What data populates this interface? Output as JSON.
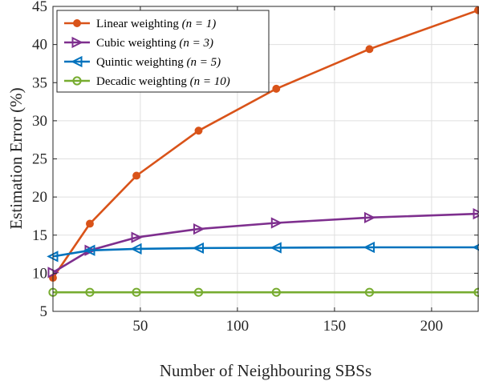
{
  "chart_data": {
    "type": "line",
    "xlabel": "Number of Neighbouring SBSs",
    "ylabel": "Estimation Error (%)",
    "xlim": [
      5,
      224
    ],
    "ylim": [
      5,
      45
    ],
    "xticks": [
      50,
      100,
      150,
      200
    ],
    "yticks": [
      5,
      10,
      15,
      20,
      25,
      30,
      35,
      40,
      45
    ],
    "x": [
      5,
      24,
      48,
      80,
      120,
      168,
      224
    ],
    "grid": true,
    "legend_position": "top-left",
    "series": [
      {
        "name": "Linear weighting",
        "param": "(n = 1)",
        "marker": "circle-filled",
        "color": "#D95319",
        "values": [
          9.4,
          16.5,
          22.8,
          28.7,
          34.2,
          39.4,
          44.5
        ]
      },
      {
        "name": "Cubic weighting",
        "param": "(n = 3)",
        "marker": "triangle-right",
        "color": "#7E2F8E",
        "values": [
          10.1,
          13.0,
          14.7,
          15.8,
          16.6,
          17.3,
          17.8
        ]
      },
      {
        "name": "Quintic weighting",
        "param": "(n = 5)",
        "marker": "triangle-left",
        "color": "#0072BD",
        "values": [
          12.2,
          13.0,
          13.2,
          13.3,
          13.35,
          13.4,
          13.4
        ]
      },
      {
        "name": "Decadic weighting",
        "param": "(n = 10)",
        "marker": "circle-open",
        "color": "#77AC30",
        "values": [
          7.5,
          7.5,
          7.5,
          7.5,
          7.5,
          7.5,
          7.5
        ]
      }
    ]
  }
}
